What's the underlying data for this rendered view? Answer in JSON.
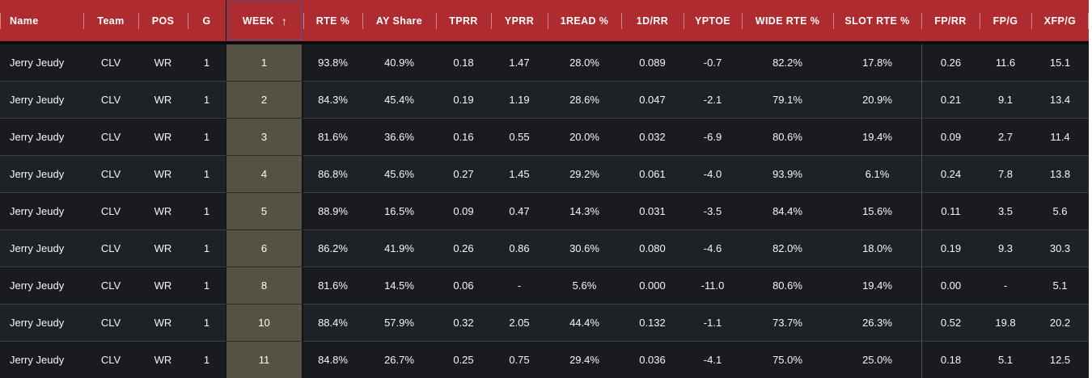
{
  "table": {
    "player": "Jerry Jeudy",
    "columns": [
      {
        "key": "name",
        "label": "Name"
      },
      {
        "key": "team",
        "label": "Team"
      },
      {
        "key": "pos",
        "label": "POS"
      },
      {
        "key": "g",
        "label": "G"
      },
      {
        "key": "week",
        "label": "WEEK",
        "sorted": "ascending",
        "sort_icon": "arrow-up-icon"
      },
      {
        "key": "rte_pct",
        "label": "RTE %"
      },
      {
        "key": "ay_share",
        "label": "AY Share"
      },
      {
        "key": "tprr",
        "label": "TPRR"
      },
      {
        "key": "yprr",
        "label": "YPRR"
      },
      {
        "key": "firstread_pct",
        "label": "1READ %"
      },
      {
        "key": "firstd_rr",
        "label": "1D/RR"
      },
      {
        "key": "yptoe",
        "label": "YPTOE"
      },
      {
        "key": "wide_rte_pct",
        "label": "WIDE RTE %"
      },
      {
        "key": "slot_rte_pct",
        "label": "SLOT RTE %"
      },
      {
        "key": "fp_rr",
        "label": "FP/RR",
        "group_start": true
      },
      {
        "key": "fp_g",
        "label": "FP/G"
      },
      {
        "key": "xfp_g",
        "label": "XFP/G"
      }
    ],
    "sort": {
      "column": "WEEK",
      "direction": "ascending"
    },
    "rows": [
      {
        "cells": [
          "Jerry Jeudy",
          "CLV",
          "WR",
          "1",
          "1",
          "93.8%",
          "40.9%",
          "0.18",
          "1.47",
          "28.0%",
          "0.089",
          "-0.7",
          "82.2%",
          "17.8%",
          "0.26",
          "11.6",
          "15.1"
        ]
      },
      {
        "cells": [
          "Jerry Jeudy",
          "CLV",
          "WR",
          "1",
          "2",
          "84.3%",
          "45.4%",
          "0.19",
          "1.19",
          "28.6%",
          "0.047",
          "-2.1",
          "79.1%",
          "20.9%",
          "0.21",
          "9.1",
          "13.4"
        ]
      },
      {
        "cells": [
          "Jerry Jeudy",
          "CLV",
          "WR",
          "1",
          "3",
          "81.6%",
          "36.6%",
          "0.16",
          "0.55",
          "20.0%",
          "0.032",
          "-6.9",
          "80.6%",
          "19.4%",
          "0.09",
          "2.7",
          "11.4"
        ]
      },
      {
        "cells": [
          "Jerry Jeudy",
          "CLV",
          "WR",
          "1",
          "4",
          "86.8%",
          "45.6%",
          "0.27",
          "1.45",
          "29.2%",
          "0.061",
          "-4.0",
          "93.9%",
          "6.1%",
          "0.24",
          "7.8",
          "13.8"
        ]
      },
      {
        "cells": [
          "Jerry Jeudy",
          "CLV",
          "WR",
          "1",
          "5",
          "88.9%",
          "16.5%",
          "0.09",
          "0.47",
          "14.3%",
          "0.031",
          "-3.5",
          "84.4%",
          "15.6%",
          "0.11",
          "3.5",
          "5.6"
        ]
      },
      {
        "cells": [
          "Jerry Jeudy",
          "CLV",
          "WR",
          "1",
          "6",
          "86.2%",
          "41.9%",
          "0.26",
          "0.86",
          "30.6%",
          "0.080",
          "-4.6",
          "82.0%",
          "18.0%",
          "0.19",
          "9.3",
          "30.3"
        ]
      },
      {
        "cells": [
          "Jerry Jeudy",
          "CLV",
          "WR",
          "1",
          "8",
          "81.6%",
          "14.5%",
          "0.06",
          "-",
          "5.6%",
          "0.000",
          "-11.0",
          "80.6%",
          "19.4%",
          "0.00",
          "-",
          "5.1"
        ]
      },
      {
        "cells": [
          "Jerry Jeudy",
          "CLV",
          "WR",
          "1",
          "10",
          "88.4%",
          "57.9%",
          "0.32",
          "2.05",
          "44.4%",
          "0.132",
          "-1.1",
          "73.7%",
          "26.3%",
          "0.52",
          "19.8",
          "20.2"
        ]
      },
      {
        "cells": [
          "Jerry Jeudy",
          "CLV",
          "WR",
          "1",
          "11",
          "84.8%",
          "26.7%",
          "0.25",
          "0.75",
          "29.4%",
          "0.036",
          "-4.1",
          "75.0%",
          "25.0%",
          "0.18",
          "5.1",
          "12.5"
        ]
      }
    ]
  },
  "colors": {
    "header_bg": "#ae2b2f",
    "header_text": "#ffffff",
    "sort_outline": "#4c5694",
    "row_odd": "#191b1f",
    "row_even": "#1e2126",
    "week_cell_bg": "#555243",
    "row_divider": "#3b3f45",
    "group_divider": "#4e535b",
    "body_text": "#f5f6f7"
  }
}
